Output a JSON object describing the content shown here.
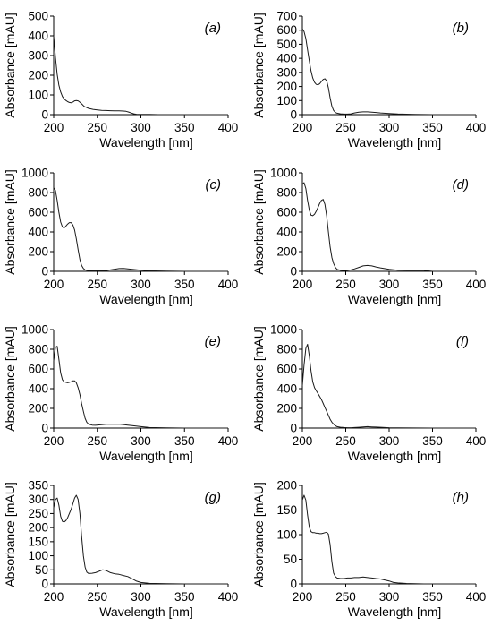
{
  "chart_data": [
    {
      "type": "line",
      "panel_label": "(a)",
      "xlabel": "Wavelength [nm]",
      "ylabel": "Absorbance [mAU]",
      "xlim": [
        200,
        400
      ],
      "ylim": [
        0,
        500
      ],
      "xticks": [
        200,
        250,
        300,
        350,
        400
      ],
      "yticks": [
        0,
        100,
        200,
        300,
        400,
        500
      ],
      "grid": false,
      "series": [
        {
          "x": [
            200,
            202,
            204,
            206,
            208,
            210,
            212,
            214,
            216,
            218,
            220,
            222,
            224,
            226,
            228,
            230,
            232,
            235,
            240,
            245,
            250,
            255,
            260,
            265,
            270,
            275,
            280,
            283,
            286,
            289,
            292,
            295,
            300,
            310,
            320,
            340,
            360,
            380,
            400
          ],
          "y": [
            400,
            290,
            205,
            150,
            115,
            92,
            80,
            72,
            66,
            62,
            60,
            64,
            70,
            72,
            70,
            63,
            55,
            42,
            32,
            27,
            24,
            22,
            21,
            20,
            19,
            19,
            18,
            17,
            13,
            8,
            4,
            2,
            1,
            1,
            0,
            0,
            0,
            0,
            0
          ]
        }
      ]
    },
    {
      "type": "line",
      "panel_label": "(b)",
      "xlabel": "Wavelength [nm]",
      "ylabel": "Absorbance [mAU]",
      "xlim": [
        200,
        400
      ],
      "ylim": [
        0,
        700
      ],
      "xticks": [
        200,
        250,
        300,
        350,
        400
      ],
      "yticks": [
        0,
        100,
        200,
        300,
        400,
        500,
        600,
        700
      ],
      "grid": false,
      "series": [
        {
          "x": [
            200,
            202,
            204,
            206,
            208,
            210,
            212,
            214,
            216,
            218,
            220,
            222,
            224,
            226,
            228,
            230,
            232,
            234,
            236,
            238,
            240,
            244,
            248,
            252,
            256,
            260,
            265,
            270,
            275,
            280,
            285,
            290,
            300,
            310,
            330,
            350,
            400
          ],
          "y": [
            610,
            590,
            540,
            460,
            380,
            310,
            260,
            230,
            215,
            212,
            220,
            235,
            250,
            255,
            240,
            190,
            120,
            60,
            30,
            15,
            10,
            6,
            4,
            4,
            6,
            12,
            18,
            20,
            20,
            18,
            15,
            12,
            8,
            5,
            2,
            0,
            0
          ]
        }
      ]
    },
    {
      "type": "line",
      "panel_label": "(c)",
      "xlabel": "Wavelength [nm]",
      "ylabel": "Absorbance [mAU]",
      "xlim": [
        200,
        400
      ],
      "ylim": [
        0,
        1000
      ],
      "xticks": [
        200,
        250,
        300,
        350,
        400
      ],
      "yticks": [
        0,
        200,
        400,
        600,
        800,
        1000
      ],
      "grid": false,
      "series": [
        {
          "x": [
            200,
            202,
            204,
            206,
            208,
            210,
            212,
            214,
            216,
            218,
            220,
            222,
            224,
            226,
            228,
            230,
            232,
            234,
            236,
            238,
            240,
            244,
            248,
            252,
            256,
            260,
            265,
            270,
            275,
            280,
            285,
            290,
            300,
            310,
            330,
            350,
            400
          ],
          "y": [
            850,
            820,
            720,
            600,
            500,
            450,
            440,
            460,
            480,
            495,
            495,
            470,
            420,
            330,
            220,
            120,
            60,
            30,
            15,
            10,
            8,
            6,
            5,
            5,
            6,
            8,
            15,
            22,
            28,
            30,
            25,
            20,
            12,
            5,
            2,
            0,
            0
          ]
        }
      ]
    },
    {
      "type": "line",
      "panel_label": "(d)",
      "xlabel": "Wavelength [nm]",
      "ylabel": "Absorbance [mAU]",
      "xlim": [
        200,
        400
      ],
      "ylim": [
        0,
        1000
      ],
      "xticks": [
        200,
        250,
        300,
        350,
        400
      ],
      "yticks": [
        0,
        200,
        400,
        600,
        800,
        1000
      ],
      "grid": false,
      "series": [
        {
          "x": [
            200,
            202,
            204,
            206,
            208,
            210,
            212,
            214,
            216,
            218,
            220,
            222,
            224,
            226,
            228,
            230,
            232,
            234,
            236,
            238,
            240,
            244,
            248,
            252,
            256,
            260,
            265,
            270,
            275,
            280,
            285,
            290,
            300,
            310,
            320,
            330,
            340,
            350,
            400
          ],
          "y": [
            880,
            900,
            840,
            720,
            620,
            570,
            565,
            580,
            610,
            650,
            690,
            720,
            730,
            680,
            560,
            400,
            250,
            140,
            80,
            40,
            20,
            10,
            8,
            10,
            15,
            25,
            40,
            55,
            60,
            55,
            45,
            35,
            20,
            12,
            10,
            12,
            10,
            0,
            0
          ]
        }
      ]
    },
    {
      "type": "line",
      "panel_label": "(e)",
      "xlabel": "Wavelength [nm]",
      "ylabel": "Absorbance [mAU]",
      "xlim": [
        200,
        400
      ],
      "ylim": [
        0,
        1000
      ],
      "xticks": [
        200,
        250,
        300,
        350,
        400
      ],
      "yticks": [
        0,
        200,
        400,
        600,
        800,
        1000
      ],
      "grid": false,
      "series": [
        {
          "x": [
            200,
            202,
            204,
            206,
            208,
            210,
            212,
            214,
            216,
            218,
            220,
            222,
            224,
            226,
            228,
            230,
            232,
            234,
            236,
            238,
            240,
            244,
            248,
            252,
            256,
            260,
            265,
            270,
            275,
            280,
            285,
            290,
            300,
            310,
            330,
            350,
            400
          ],
          "y": [
            680,
            820,
            830,
            700,
            560,
            490,
            470,
            465,
            460,
            465,
            470,
            480,
            480,
            460,
            410,
            340,
            250,
            170,
            100,
            60,
            40,
            30,
            28,
            32,
            35,
            38,
            40,
            38,
            40,
            35,
            30,
            25,
            15,
            5,
            2,
            0,
            0
          ]
        }
      ]
    },
    {
      "type": "line",
      "panel_label": "(f)",
      "xlabel": "Wavelength [nm]",
      "ylabel": "Absorbance [mAU]",
      "xlim": [
        200,
        400
      ],
      "ylim": [
        0,
        1000
      ],
      "xticks": [
        200,
        250,
        300,
        350,
        400
      ],
      "yticks": [
        0,
        200,
        400,
        600,
        800,
        1000
      ],
      "grid": false,
      "series": [
        {
          "x": [
            200,
            202,
            204,
            206,
            208,
            210,
            212,
            214,
            216,
            218,
            220,
            222,
            224,
            226,
            228,
            230,
            232,
            234,
            236,
            238,
            240,
            244,
            248,
            252,
            256,
            260,
            265,
            270,
            275,
            280,
            285,
            290,
            300,
            310,
            330,
            350,
            400
          ],
          "y": [
            430,
            640,
            810,
            850,
            730,
            580,
            470,
            410,
            380,
            350,
            320,
            290,
            250,
            210,
            170,
            130,
            90,
            60,
            40,
            25,
            15,
            8,
            5,
            4,
            4,
            5,
            8,
            12,
            15,
            12,
            10,
            8,
            4,
            2,
            1,
            0,
            0
          ]
        }
      ]
    },
    {
      "type": "line",
      "panel_label": "(g)",
      "xlabel": "Wavelength [nm]",
      "ylabel": "Absorbance [mAU]",
      "xlim": [
        200,
        400
      ],
      "ylim": [
        0,
        350
      ],
      "xticks": [
        200,
        250,
        300,
        350,
        400
      ],
      "yticks": [
        0,
        50,
        100,
        150,
        200,
        250,
        300,
        350
      ],
      "grid": false,
      "series": [
        {
          "x": [
            200,
            202,
            204,
            206,
            208,
            210,
            212,
            214,
            216,
            218,
            220,
            222,
            224,
            226,
            228,
            230,
            232,
            234,
            236,
            238,
            240,
            244,
            248,
            252,
            256,
            260,
            265,
            270,
            275,
            280,
            285,
            290,
            295,
            300,
            310,
            330,
            350,
            400
          ],
          "y": [
            270,
            300,
            305,
            280,
            240,
            222,
            220,
            225,
            235,
            250,
            265,
            285,
            305,
            315,
            300,
            250,
            170,
            100,
            60,
            42,
            37,
            38,
            40,
            45,
            50,
            48,
            40,
            36,
            34,
            30,
            26,
            18,
            10,
            5,
            2,
            1,
            0,
            0
          ]
        }
      ]
    },
    {
      "type": "line",
      "panel_label": "(h)",
      "xlabel": "Wavelength [nm]",
      "ylabel": "Absorbance [mAU]",
      "xlim": [
        200,
        400
      ],
      "ylim": [
        0,
        200
      ],
      "xticks": [
        200,
        250,
        300,
        350,
        400
      ],
      "yticks": [
        0,
        50,
        100,
        150,
        200
      ],
      "grid": false,
      "series": [
        {
          "x": [
            200,
            202,
            204,
            206,
            208,
            210,
            212,
            214,
            216,
            218,
            220,
            222,
            224,
            226,
            228,
            230,
            232,
            234,
            236,
            238,
            240,
            244,
            248,
            252,
            256,
            260,
            265,
            270,
            275,
            280,
            285,
            290,
            295,
            300,
            305,
            310,
            320,
            340,
            360,
            400
          ],
          "y": [
            170,
            180,
            170,
            140,
            115,
            106,
            104,
            104,
            103,
            103,
            102,
            102,
            103,
            104,
            105,
            101,
            80,
            45,
            22,
            15,
            12,
            11,
            11,
            12,
            12,
            13,
            13,
            14,
            13,
            12,
            11,
            10,
            8,
            6,
            3,
            2,
            1,
            0,
            0,
            0
          ]
        }
      ]
    }
  ]
}
